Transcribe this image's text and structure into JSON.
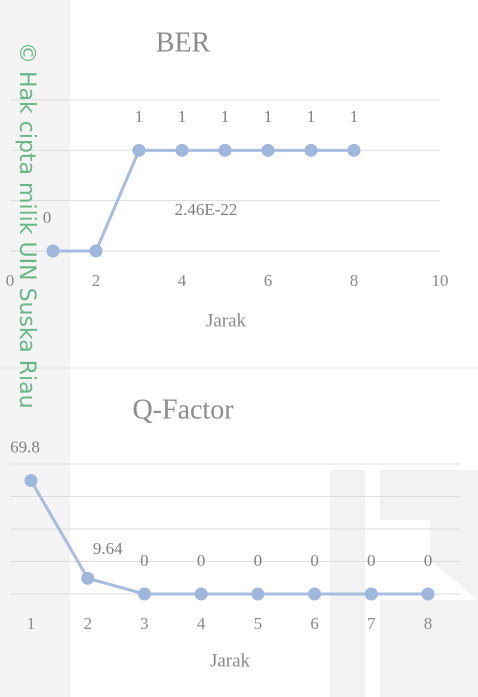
{
  "watermark": "© Hak cipta milik UIN Suska Riau",
  "chart_data": [
    {
      "type": "line",
      "title": "BER",
      "x_label": "Jarak",
      "x": [
        1,
        2,
        3,
        4,
        5,
        6,
        7,
        8
      ],
      "series": [
        {
          "name": "BER",
          "color": "#a7bddf",
          "values": [
            0,
            2.46e-22,
            1,
            1,
            1,
            1,
            1,
            1
          ],
          "value_labels": [
            "0",
            "2.46E-22",
            "1",
            "1",
            "1",
            "1",
            "1",
            "1"
          ]
        }
      ],
      "xlim": [
        0,
        10
      ],
      "xticks": [
        0,
        2,
        4,
        6,
        8,
        10
      ],
      "ylim": [
        0,
        1.5
      ],
      "yticks": [
        0,
        0.5,
        1,
        1.5
      ],
      "grid": true
    },
    {
      "type": "line",
      "title": "Q-Factor",
      "x_label": "Jarak",
      "categories": [
        "1",
        "2",
        "3",
        "4",
        "5",
        "6",
        "7",
        "8"
      ],
      "series": [
        {
          "name": "Q-Factor",
          "color": "#a7bddf",
          "values": [
            69.8,
            9.64,
            0,
            0,
            0,
            0,
            0,
            0
          ]
        }
      ],
      "ylim": [
        0,
        80
      ],
      "yticks": [
        0,
        20,
        40,
        60,
        80
      ],
      "grid": true
    }
  ]
}
